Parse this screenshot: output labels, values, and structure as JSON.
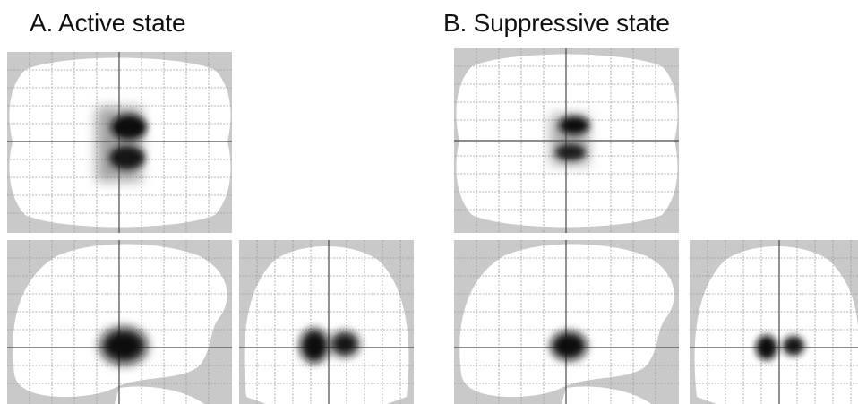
{
  "figure": {
    "panels": [
      {
        "id": "A",
        "title": "A. Active state"
      },
      {
        "id": "B",
        "title": "B. Suppressive state"
      }
    ]
  },
  "colors": {
    "background": "#ffffff",
    "outside_brain": "#c9c9c9",
    "brain": "#ffffff",
    "grid": "#9a9a9a",
    "crosshair": "#4a4a4a",
    "activation": "#111111"
  },
  "views": [
    "axial",
    "sagittal",
    "coronal"
  ],
  "icons": []
}
